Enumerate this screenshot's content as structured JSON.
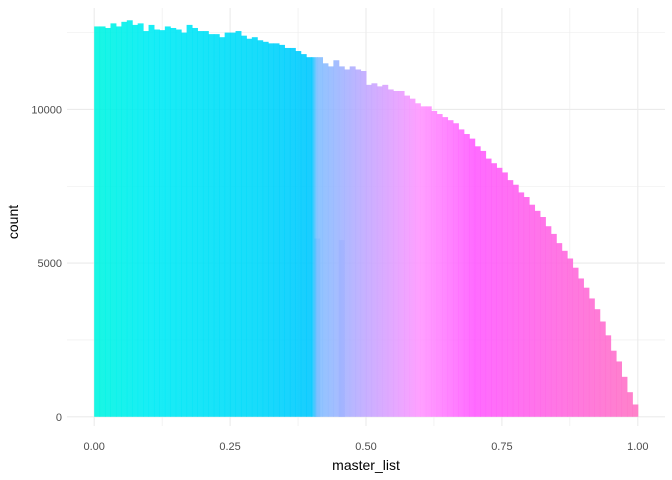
{
  "chart_data": {
    "type": "bar",
    "subtype": "histogram",
    "xlabel": "master_list",
    "ylabel": "count",
    "xlim": [
      -0.05,
      1.05
    ],
    "ylim": [
      -300,
      13300
    ],
    "x_ticks": [
      "0.00",
      "0.25",
      "0.50",
      "0.75",
      "1.00"
    ],
    "y_ticks": [
      "0",
      "5000",
      "10000"
    ],
    "grid": true,
    "legend": "none",
    "bin_width": 0.01,
    "gradient_stops": [
      {
        "x": 0.0,
        "color": "#00F5E0"
      },
      {
        "x": 0.1,
        "color": "#00ECF4"
      },
      {
        "x": 0.3,
        "color": "#00D8FA"
      },
      {
        "x": 0.4,
        "color": "#00C8FF"
      },
      {
        "x": 0.41,
        "color": "#80BFFF"
      },
      {
        "x": 0.5,
        "color": "#C2A8FF"
      },
      {
        "x": 0.6,
        "color": "#FF96FF"
      },
      {
        "x": 0.7,
        "color": "#FF5BFF"
      },
      {
        "x": 1.0,
        "color": "#FF74C4"
      }
    ],
    "series": [
      {
        "bin_starts": [
          0.0,
          0.01,
          0.02,
          0.03,
          0.04,
          0.05,
          0.06,
          0.07,
          0.08,
          0.09,
          0.1,
          0.11,
          0.12,
          0.13,
          0.14,
          0.15,
          0.16,
          0.17,
          0.18,
          0.19,
          0.2,
          0.21,
          0.22,
          0.23,
          0.24,
          0.25,
          0.26,
          0.27,
          0.28,
          0.29,
          0.3,
          0.31,
          0.32,
          0.33,
          0.34,
          0.35,
          0.36,
          0.37,
          0.38,
          0.39,
          0.4
        ],
        "values": [
          12700,
          12700,
          12650,
          12800,
          12700,
          12850,
          12900,
          12750,
          12800,
          12550,
          12750,
          12600,
          12580,
          12700,
          12650,
          12600,
          12500,
          12750,
          12650,
          12550,
          12550,
          12450,
          12450,
          12350,
          12500,
          12500,
          12550,
          12400,
          12300,
          12350,
          12250,
          12200,
          12150,
          12150,
          12100,
          12000,
          12000,
          11900,
          11800,
          11700,
          11700
        ]
      },
      {
        "bin_starts": [
          0.41,
          0.42,
          0.43,
          0.44,
          0.45,
          0.46,
          0.47,
          0.48,
          0.49,
          0.5,
          0.51,
          0.52,
          0.53,
          0.54,
          0.55,
          0.56,
          0.57,
          0.58,
          0.59,
          0.6,
          0.61,
          0.62,
          0.63,
          0.64,
          0.65,
          0.66,
          0.67,
          0.68,
          0.69,
          0.7,
          0.71,
          0.72,
          0.73,
          0.74,
          0.75,
          0.76,
          0.77,
          0.78,
          0.79,
          0.8,
          0.81,
          0.82,
          0.83,
          0.84,
          0.85,
          0.86,
          0.87,
          0.88,
          0.89,
          0.9,
          0.91,
          0.92,
          0.93,
          0.94,
          0.95,
          0.96,
          0.97,
          0.98,
          0.99
        ],
        "values": [
          11700,
          11500,
          11400,
          11600,
          11400,
          11300,
          11400,
          11300,
          11250,
          10800,
          10850,
          10750,
          10800,
          10650,
          10600,
          10600,
          10450,
          10350,
          10200,
          10100,
          10100,
          9950,
          9850,
          9750,
          9650,
          9550,
          9350,
          9200,
          9050,
          8800,
          8650,
          8400,
          8250,
          8100,
          7950,
          7700,
          7550,
          7300,
          7150,
          6900,
          6700,
          6500,
          6200,
          5950,
          5650,
          5400,
          5150,
          4850,
          4500,
          4200,
          3850,
          3500,
          3100,
          2650,
          2150,
          1800,
          1300,
          800,
          400
        ]
      },
      {
        "bin_starts": [
          0.405,
          0.45
        ],
        "values": [
          5800,
          5750
        ]
      }
    ]
  }
}
